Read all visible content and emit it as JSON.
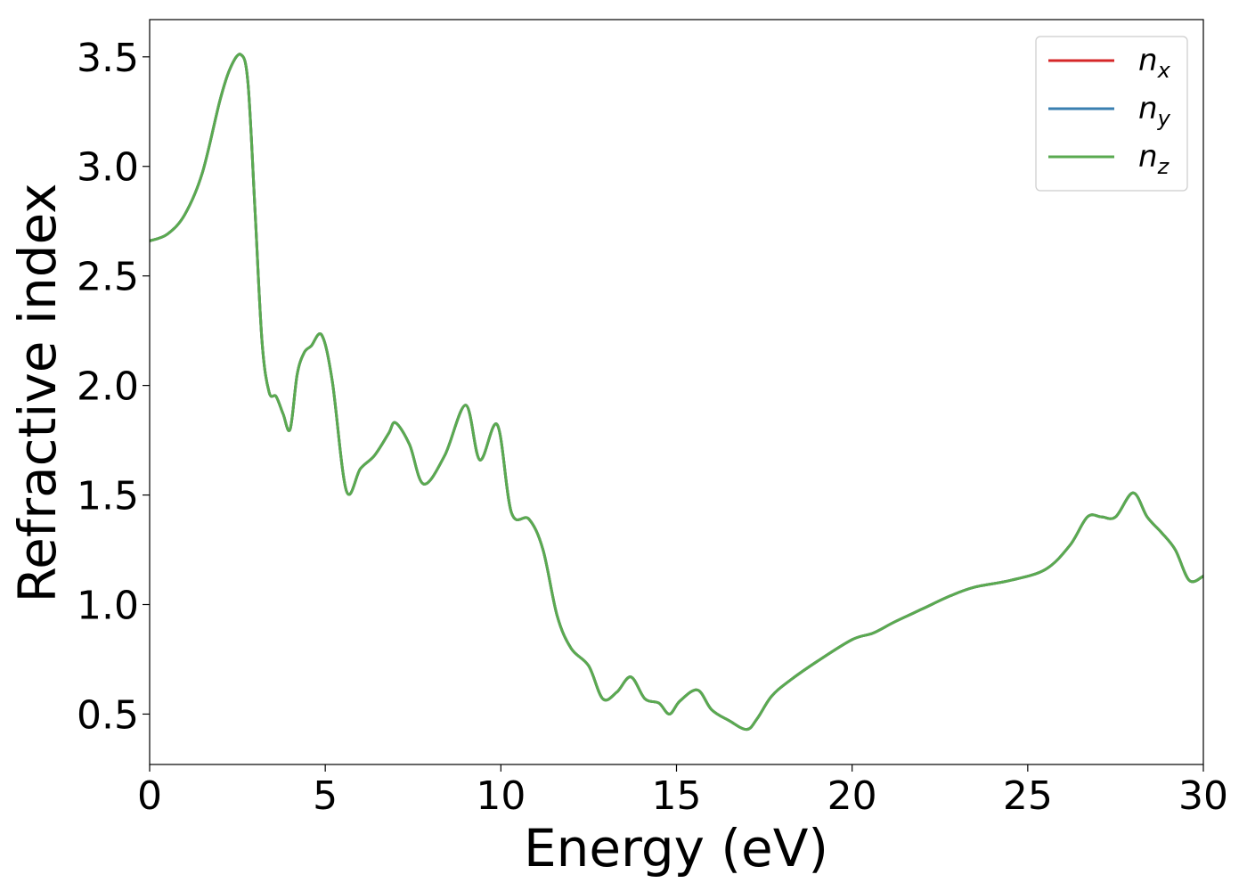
{
  "chart_data": {
    "type": "line",
    "xlabel": "Energy (eV)",
    "ylabel": "Refractive index",
    "xlim": [
      0,
      30
    ],
    "ylim": [
      0.27,
      3.67
    ],
    "xticks": [
      0,
      5,
      10,
      15,
      20,
      25,
      30
    ],
    "xtick_labels": [
      "0",
      "5",
      "10",
      "15",
      "20",
      "25",
      "30"
    ],
    "yticks": [
      0.5,
      1.0,
      1.5,
      2.0,
      2.5,
      3.0,
      3.5
    ],
    "ytick_labels": [
      "0.5",
      "1.0",
      "1.5",
      "2.0",
      "2.5",
      "3.0",
      "3.5"
    ],
    "grid": false,
    "legend_position": "top-right",
    "x": [
      0,
      0.5,
      1.0,
      1.5,
      2.0,
      2.3,
      2.6,
      2.8,
      3.0,
      3.2,
      3.4,
      3.6,
      3.8,
      4.0,
      4.2,
      4.4,
      4.6,
      4.9,
      5.2,
      5.6,
      6.0,
      6.4,
      6.8,
      7.0,
      7.4,
      7.8,
      8.4,
      9.0,
      9.4,
      9.9,
      10.3,
      10.8,
      11.2,
      11.6,
      12.0,
      12.5,
      12.9,
      13.3,
      13.7,
      14.1,
      14.5,
      14.8,
      15.1,
      15.6,
      16.0,
      16.5,
      17.0,
      17.3,
      17.7,
      18.2,
      19.0,
      20.0,
      20.6,
      21.2,
      22.0,
      22.8,
      23.5,
      24.5,
      25.5,
      26.2,
      26.7,
      27.1,
      27.5,
      28.0,
      28.4,
      28.8,
      29.2,
      29.6,
      30.0
    ],
    "series": [
      {
        "name": "n_x",
        "label_main": "n",
        "label_sub": "x",
        "color": "#d62728",
        "values": [
          2.66,
          2.69,
          2.78,
          2.97,
          3.3,
          3.45,
          3.51,
          3.38,
          2.8,
          2.2,
          1.97,
          1.95,
          1.87,
          1.8,
          2.05,
          2.15,
          2.18,
          2.23,
          2.02,
          1.52,
          1.62,
          1.68,
          1.78,
          1.83,
          1.73,
          1.55,
          1.68,
          1.91,
          1.66,
          1.82,
          1.42,
          1.39,
          1.25,
          0.95,
          0.8,
          0.72,
          0.57,
          0.6,
          0.67,
          0.57,
          0.55,
          0.5,
          0.56,
          0.61,
          0.52,
          0.47,
          0.43,
          0.48,
          0.58,
          0.65,
          0.74,
          0.84,
          0.87,
          0.92,
          0.98,
          1.04,
          1.08,
          1.11,
          1.16,
          1.27,
          1.4,
          1.4,
          1.4,
          1.51,
          1.4,
          1.33,
          1.25,
          1.11,
          1.13
        ]
      },
      {
        "name": "n_y",
        "label_main": "n",
        "label_sub": "y",
        "color": "#3a7fb0",
        "values": [
          2.66,
          2.69,
          2.78,
          2.97,
          3.3,
          3.45,
          3.51,
          3.38,
          2.8,
          2.2,
          1.97,
          1.95,
          1.87,
          1.8,
          2.05,
          2.15,
          2.18,
          2.23,
          2.02,
          1.52,
          1.62,
          1.68,
          1.78,
          1.83,
          1.73,
          1.55,
          1.68,
          1.91,
          1.66,
          1.82,
          1.42,
          1.39,
          1.25,
          0.95,
          0.8,
          0.72,
          0.57,
          0.6,
          0.67,
          0.57,
          0.55,
          0.5,
          0.56,
          0.61,
          0.52,
          0.47,
          0.43,
          0.48,
          0.58,
          0.65,
          0.74,
          0.84,
          0.87,
          0.92,
          0.98,
          1.04,
          1.08,
          1.11,
          1.16,
          1.27,
          1.4,
          1.4,
          1.4,
          1.51,
          1.4,
          1.33,
          1.25,
          1.11,
          1.13
        ]
      },
      {
        "name": "n_z",
        "label_main": "n",
        "label_sub": "z",
        "color": "#5aaa50",
        "values": [
          2.66,
          2.69,
          2.78,
          2.97,
          3.3,
          3.45,
          3.51,
          3.38,
          2.8,
          2.2,
          1.97,
          1.95,
          1.87,
          1.8,
          2.05,
          2.15,
          2.18,
          2.23,
          2.02,
          1.52,
          1.62,
          1.68,
          1.78,
          1.83,
          1.73,
          1.55,
          1.68,
          1.91,
          1.66,
          1.82,
          1.42,
          1.39,
          1.25,
          0.95,
          0.8,
          0.72,
          0.57,
          0.6,
          0.67,
          0.57,
          0.55,
          0.5,
          0.56,
          0.61,
          0.52,
          0.47,
          0.43,
          0.48,
          0.58,
          0.65,
          0.74,
          0.84,
          0.87,
          0.92,
          0.98,
          1.04,
          1.08,
          1.11,
          1.16,
          1.27,
          1.4,
          1.4,
          1.4,
          1.51,
          1.4,
          1.33,
          1.25,
          1.11,
          1.13
        ]
      }
    ]
  }
}
